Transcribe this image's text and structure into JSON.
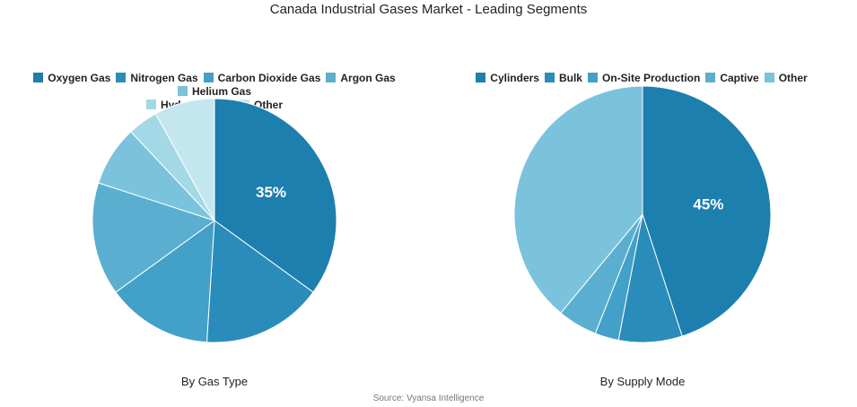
{
  "title": "Canada Industrial Gases Market - Leading Segments",
  "source": "Source: Vyansa Intelligence",
  "chart_data": [
    {
      "type": "pie",
      "subtitle": "By Gas Type",
      "categories": [
        "Oxygen Gas",
        "Nitrogen Gas",
        "Carbon Dioxide Gas",
        "Argon Gas",
        "Helium Gas",
        "Hydrogen Gas",
        "Other"
      ],
      "values": [
        35,
        16,
        14,
        15,
        8,
        4,
        8
      ],
      "colors": [
        "#1c7fae",
        "#2a8cba",
        "#43a0c8",
        "#5aafd0",
        "#7bc3dc",
        "#a3d8e6",
        "#c4e7ef"
      ],
      "labels": [
        "35%",
        "",
        "",
        "",
        "",
        "",
        ""
      ],
      "legend": "top"
    },
    {
      "type": "pie",
      "subtitle": "By Supply Mode",
      "categories": [
        "Cylinders",
        "Bulk",
        "On-Site Production",
        "Captive",
        "Other"
      ],
      "values": [
        45,
        8,
        3,
        5,
        39
      ],
      "colors": [
        "#1c7fae",
        "#2a8cba",
        "#43a0c8",
        "#5aafd0",
        "#7bc3dc"
      ],
      "labels": [
        "45%",
        "",
        "",
        "",
        ""
      ],
      "legend": "top"
    }
  ]
}
